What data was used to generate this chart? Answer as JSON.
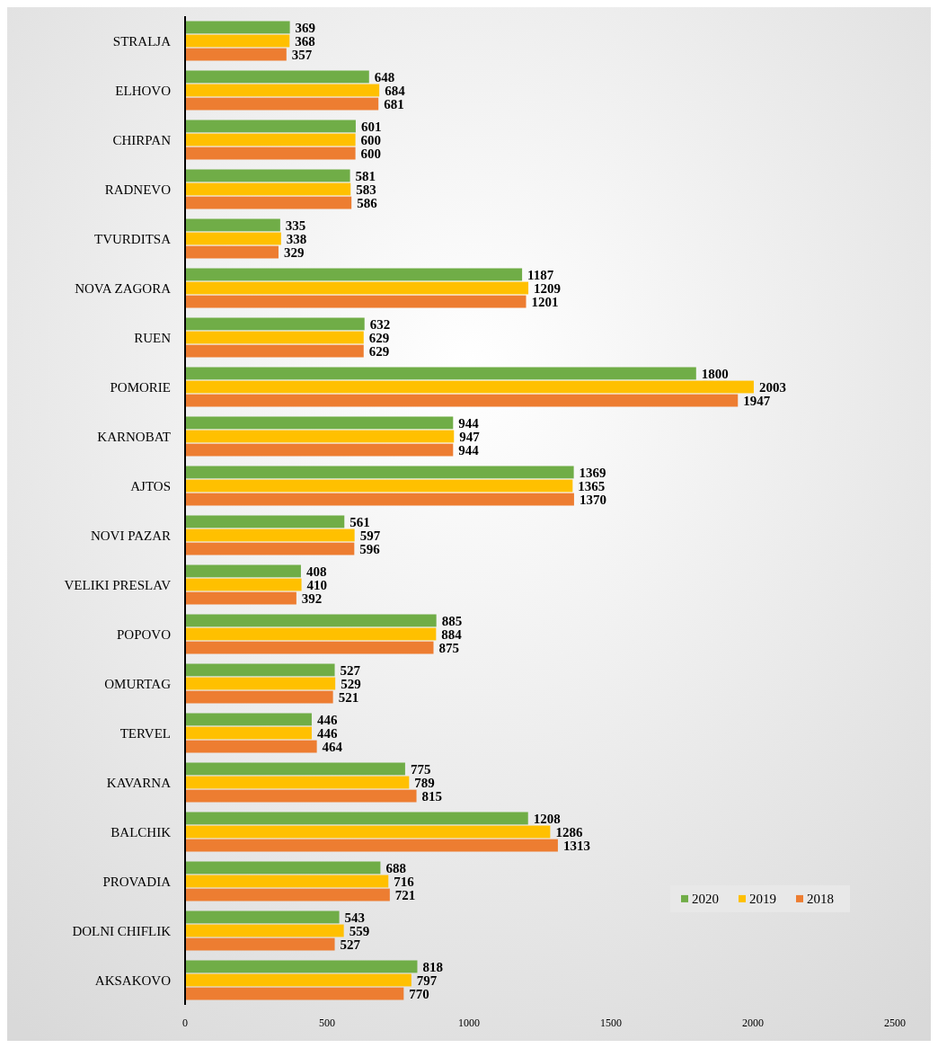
{
  "chart_data": {
    "type": "bar",
    "orientation": "horizontal",
    "categories": [
      "STRALJA",
      "ELHOVO",
      "CHIRPAN",
      "RADNEVO",
      "TVURDITSA",
      "NOVA ZAGORA",
      "RUEN",
      "POMORIE",
      "KARNOBAT",
      "AJTOS",
      "NOVI PAZAR",
      "VELIKI PRESLAV",
      "POPOVO",
      "OMURTAG",
      "TERVEL",
      "KAVARNA",
      "BALCHIK",
      "PROVADIA",
      "DOLNI CHIFLIK",
      "AKSAKOVO"
    ],
    "series": [
      {
        "name": "2020",
        "color": "#70ad47",
        "values": [
          369,
          648,
          601,
          581,
          335,
          1187,
          632,
          1800,
          944,
          1369,
          561,
          408,
          885,
          527,
          446,
          775,
          1208,
          688,
          543,
          818
        ]
      },
      {
        "name": "2019",
        "color": "#ffc000",
        "values": [
          368,
          684,
          600,
          583,
          338,
          1209,
          629,
          2003,
          947,
          1365,
          597,
          410,
          884,
          529,
          446,
          789,
          1286,
          716,
          559,
          797
        ]
      },
      {
        "name": "2018",
        "color": "#ed7d31",
        "values": [
          357,
          681,
          600,
          586,
          329,
          1201,
          629,
          1947,
          944,
          1370,
          596,
          392,
          875,
          521,
          464,
          815,
          1313,
          721,
          527,
          770
        ]
      }
    ],
    "xlim": [
      0,
      2500
    ],
    "xticks": [
      0,
      500,
      1000,
      1500,
      2000,
      2500
    ],
    "data_labels": true,
    "grid": false,
    "legend": "bottom right"
  }
}
